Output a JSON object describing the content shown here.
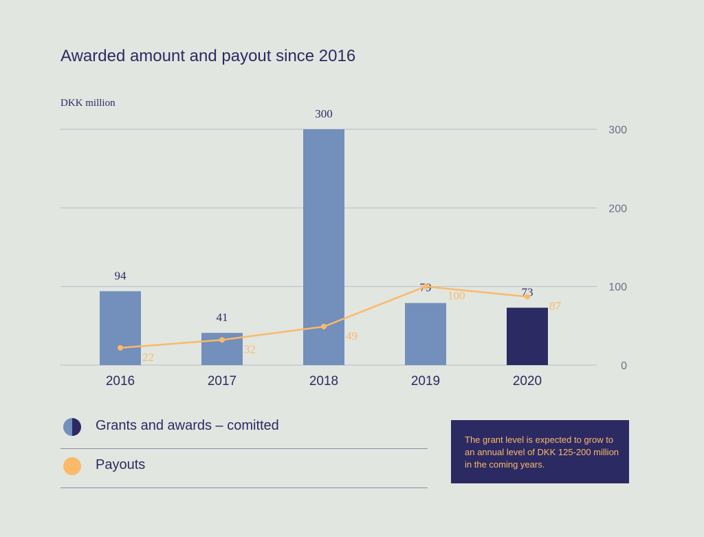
{
  "title": "Awarded amount and payout since 2016",
  "unit_label": "DKK million",
  "colors": {
    "grants_light": "#738fbb",
    "grants_dark": "#2c2a63",
    "payouts": "#fbb96a",
    "grid": "#b8bcc9",
    "text": "#2c2a63",
    "background": "#e1e6e0"
  },
  "chart_data": {
    "type": "bar",
    "categories": [
      "2016",
      "2017",
      "2018",
      "2019",
      "2020"
    ],
    "series": [
      {
        "name": "Grants and awards – comitted",
        "type": "bar",
        "values": [
          94,
          41,
          300,
          79,
          73
        ],
        "highlight_last": true
      },
      {
        "name": "Payouts",
        "type": "line",
        "values": [
          22,
          32,
          49,
          100,
          87
        ]
      }
    ],
    "y_ticks": [
      0,
      100,
      200,
      300
    ],
    "ylim": [
      0,
      300
    ],
    "grid": true,
    "y_axis_position": "right"
  },
  "legend": [
    {
      "label": "Grants and awards – comitted",
      "icon": "half-filled-circle"
    },
    {
      "label": "Payouts",
      "icon": "filled-circle"
    }
  ],
  "note": "The grant level is expected to grow to an annual level of DKK 125-200 million in the coming years."
}
